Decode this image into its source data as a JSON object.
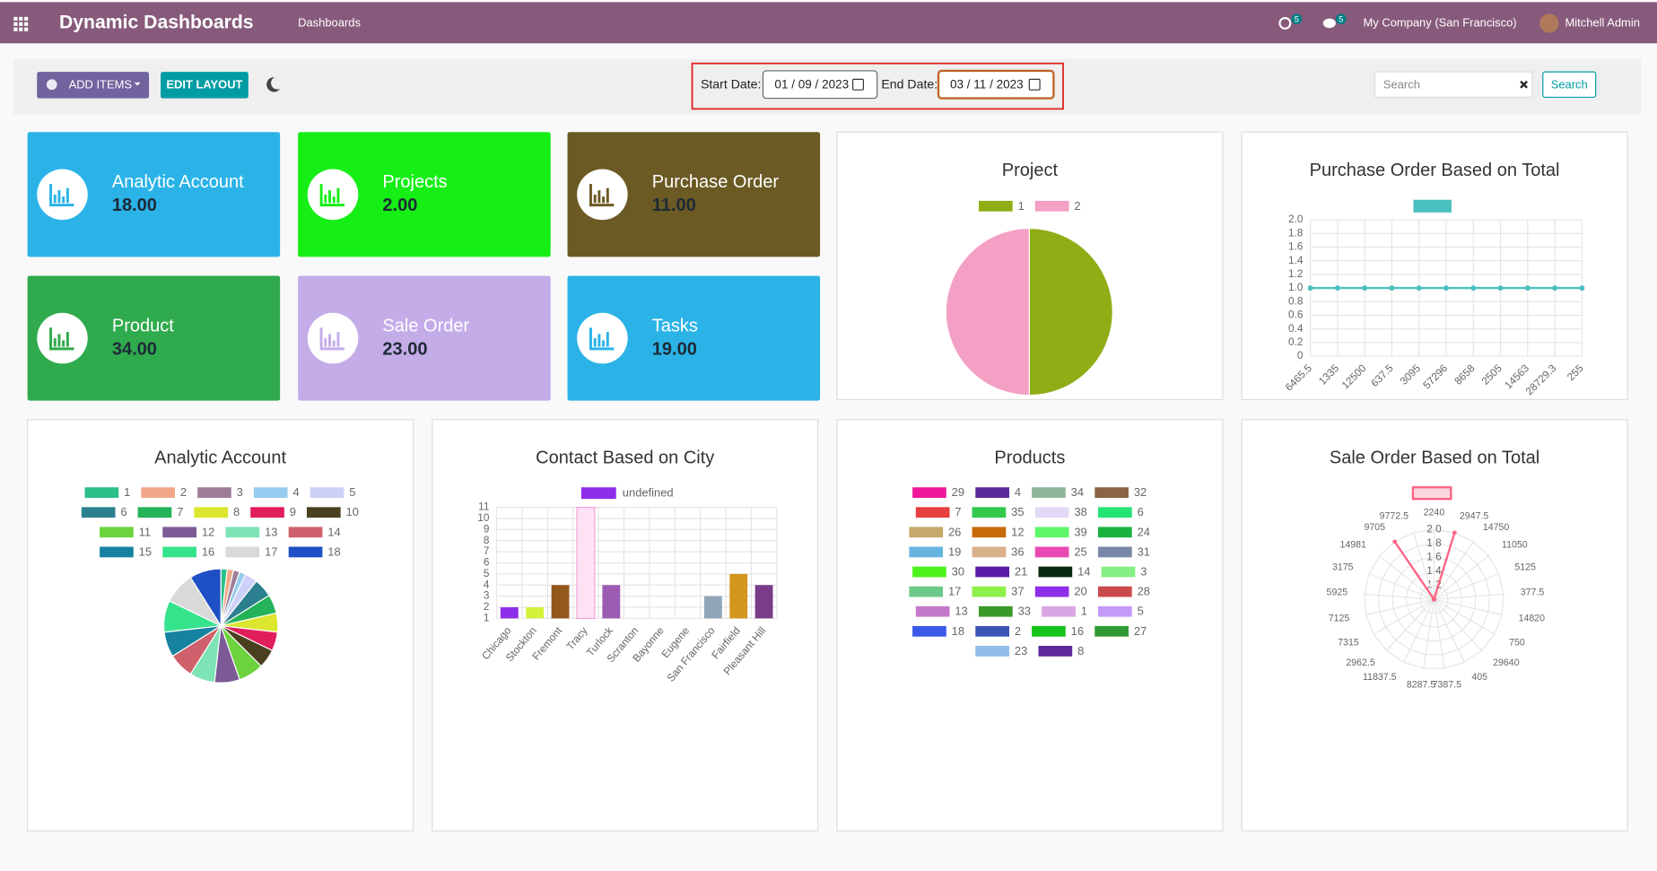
{
  "navbar": {
    "app_title": "Dynamic Dashboards",
    "menu": "Dashboards",
    "activity_count": "5",
    "message_count": "5",
    "company": "My Company (San Francisco)",
    "user": "Mitchell Admin"
  },
  "toolbar": {
    "add_items": "ADD ITEMS",
    "edit_layout": "EDIT LAYOUT",
    "start_label": "Start Date:",
    "start_date": "01 / 09 / 2023",
    "end_label": "End Date:",
    "end_date": "03 / 11 / 2023",
    "search_placeholder": "Search",
    "search_button": "Search"
  },
  "tiles": [
    {
      "title": "Analytic Account",
      "value": "18.00",
      "color": "#2bb3e8"
    },
    {
      "title": "Projects",
      "value": "2.00",
      "color": "#16ef16"
    },
    {
      "title": "Purchase Order",
      "value": "11.00",
      "color": "#6b5a24"
    },
    {
      "title": "Product",
      "value": "34.00",
      "color": "#2faa4c"
    },
    {
      "title": "Sale Order",
      "value": "23.00",
      "color": "#c4ace9"
    },
    {
      "title": "Tasks",
      "value": "19.00",
      "color": "#2bb3e8"
    }
  ],
  "chart_data": [
    {
      "type": "pie",
      "title": "Project",
      "categories": [
        "1",
        "2"
      ],
      "values": [
        1,
        1
      ],
      "colors": [
        "#8fad15",
        "#f3a0c4"
      ]
    },
    {
      "type": "line",
      "title": "Purchase Order Based on Total",
      "categories": [
        "6465.5",
        "1335",
        "12500",
        "637.5",
        "3095",
        "57296",
        "8658",
        "2505",
        "14563",
        "28729.3",
        "255"
      ],
      "series": [
        {
          "color": "#4bc0c0",
          "values": [
            1,
            1,
            1,
            1,
            1,
            1,
            1,
            1,
            1,
            1,
            1
          ]
        }
      ],
      "ylim": [
        0,
        2
      ],
      "yticks": [
        0,
        0.2,
        0.4,
        0.6,
        0.8,
        {
          "value": 1,
          "label": "1.0"
        },
        1.2,
        1.4,
        1.6,
        1.8,
        {
          "value": 2,
          "label": "2.0"
        }
      ],
      "grid": true
    },
    {
      "type": "pie",
      "title": "Analytic Account",
      "categories": [
        "1",
        "2",
        "3",
        "4",
        "5",
        "6",
        "7",
        "8",
        "9",
        "10",
        "11",
        "12",
        "13",
        "14",
        "15",
        "16",
        "17",
        "18"
      ],
      "values": [
        1,
        1,
        1,
        1,
        2,
        3,
        3,
        3,
        3,
        3,
        4,
        4,
        4,
        4,
        4,
        5,
        5,
        5
      ],
      "colors": [
        "#2bc08a",
        "#f0a889",
        "#9e7d99",
        "#97cbef",
        "#cdd0f7",
        "#2b7f8f",
        "#25b359",
        "#dde62e",
        "#e01e5a",
        "#4a3f1f",
        "#6cd33f",
        "#7b5a96",
        "#7ee3b5",
        "#d0606b",
        "#1583a0",
        "#34e38b",
        "#d9d9d9",
        "#1e4fc4"
      ]
    },
    {
      "type": "bar",
      "title": "Contact Based on City",
      "categories": [
        "Chicago",
        "Stockton",
        "Fremont",
        "Tracy",
        "Turlock",
        "Scranton",
        "Bayonne",
        "Eugene",
        "San Francisco",
        "Fairfield",
        "Pleasant Hill"
      ],
      "series": [
        {
          "name": "undefined",
          "color": "#8d2ee8",
          "colors": [
            "#8d2ee8",
            "#d4f23c",
            "#93581e",
            "#fde2f5",
            "#9c5bb3",
            "#cccccc",
            "#cccccc",
            "#cccccc",
            "#90a6b8",
            "#d4961e",
            "#7a3b88"
          ],
          "values": [
            2,
            2,
            4,
            11,
            4,
            1,
            1,
            1,
            3,
            5,
            4
          ]
        }
      ],
      "ylim": [
        1,
        11
      ],
      "yticks": [
        1,
        2,
        3,
        4,
        5,
        6,
        7,
        8,
        9,
        10,
        11
      ],
      "grid": true
    },
    {
      "type": "pie",
      "title": "Products",
      "categories": [
        "29",
        "4",
        "34",
        "32",
        "7",
        "35",
        "38",
        "6",
        "26",
        "12",
        "39",
        "24",
        "19",
        "36",
        "25",
        "31",
        "30",
        "21",
        "14",
        "3",
        "17",
        "37",
        "20",
        "28",
        "13",
        "33",
        "1",
        "5",
        "18",
        "2",
        "16",
        "27",
        "23",
        "8"
      ],
      "colors": [
        "#f0189a",
        "#5b2a99",
        "#8fb59a",
        "#8b6443",
        "#e84040",
        "#34c94d",
        "#e3d9f7",
        "#26e376",
        "#c7a86b",
        "#c96a0a",
        "#5df76a",
        "#18b33f",
        "#66b5e0",
        "#d9b08c",
        "#e849b5",
        "#7887a6",
        "#4ef21d",
        "#5a1aa6",
        "#0a2a10",
        "#85ef85",
        "#6dc98a",
        "#8ef04a",
        "#8d2ee8",
        "#c94a4a",
        "#c47ac9",
        "#3a9a29",
        "#d9a6e3",
        "#c39af7",
        "#3a5ae8",
        "#3a55b5",
        "#17c21a",
        "#2f9a33",
        "#92bbea",
        "#5e2a99"
      ]
    },
    {
      "type": "radar",
      "title": "Sale Order Based on Total",
      "categories": [
        "2240",
        "2947.5",
        "14750",
        "11050",
        "5125",
        "377.5",
        "14820",
        "750",
        "29640",
        "405",
        "7387.5",
        "8287.5",
        "11837.5",
        "2962.5",
        "7315",
        "7125",
        "5925",
        "3175",
        "14981",
        "9705",
        "9772.5"
      ],
      "series": [
        {
          "color": "#ff6384",
          "values": [
            1,
            2,
            1,
            1,
            1,
            1,
            1,
            1,
            1,
            1,
            1,
            1,
            1,
            1,
            1,
            1,
            1,
            1,
            1,
            2,
            1
          ]
        }
      ],
      "rlim": [
        1,
        2
      ],
      "rticks": [
        1.2,
        1.4,
        1.6,
        1.8,
        {
          "value": 2,
          "label": "2.0"
        }
      ],
      "grid": true
    }
  ]
}
